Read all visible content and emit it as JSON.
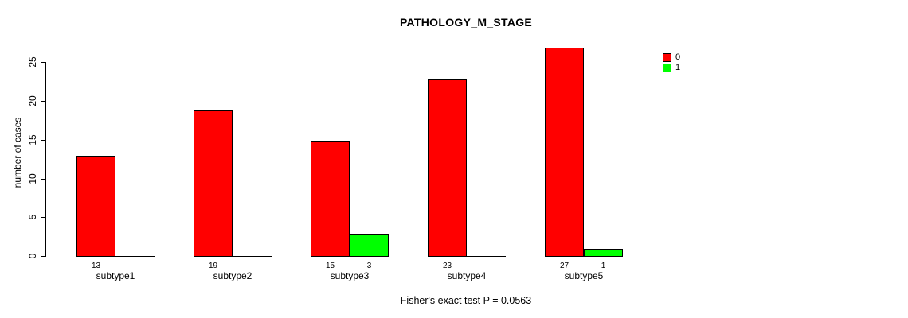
{
  "title": "PATHOLOGY_M_STAGE",
  "footer_annotation": "Fisher's exact test P = 0.0563",
  "y_axis_label": "number of cases",
  "colors": {
    "series0": "#FF0000",
    "series1": "#00FF00",
    "axis": "#000000",
    "background": "#FFFFFF"
  },
  "legend": {
    "position": "top-right",
    "entries": [
      {
        "label": "0",
        "color": "#FF0000"
      },
      {
        "label": "1",
        "color": "#00FF00"
      }
    ]
  },
  "chart_data": {
    "type": "bar",
    "title": "PATHOLOGY_M_STAGE",
    "subtitle": "",
    "xlabel": "",
    "ylabel": "number of cases",
    "categories": [
      "subtype1",
      "subtype2",
      "subtype3",
      "subtype4",
      "subtype5"
    ],
    "series": [
      {
        "name": "0",
        "color": "#FF0000",
        "values": [
          13,
          19,
          15,
          23,
          27
        ]
      },
      {
        "name": "1",
        "color": "#00FF00",
        "values": [
          0,
          0,
          3,
          0,
          1
        ]
      }
    ],
    "value_labels_shown_for_nonzero_only": true,
    "y_ticks": [
      0,
      5,
      10,
      15,
      20,
      25
    ],
    "ylim": [
      0,
      27
    ],
    "grid": false,
    "legend_position": "top-right",
    "annotation": "Fisher's exact test P = 0.0563"
  }
}
